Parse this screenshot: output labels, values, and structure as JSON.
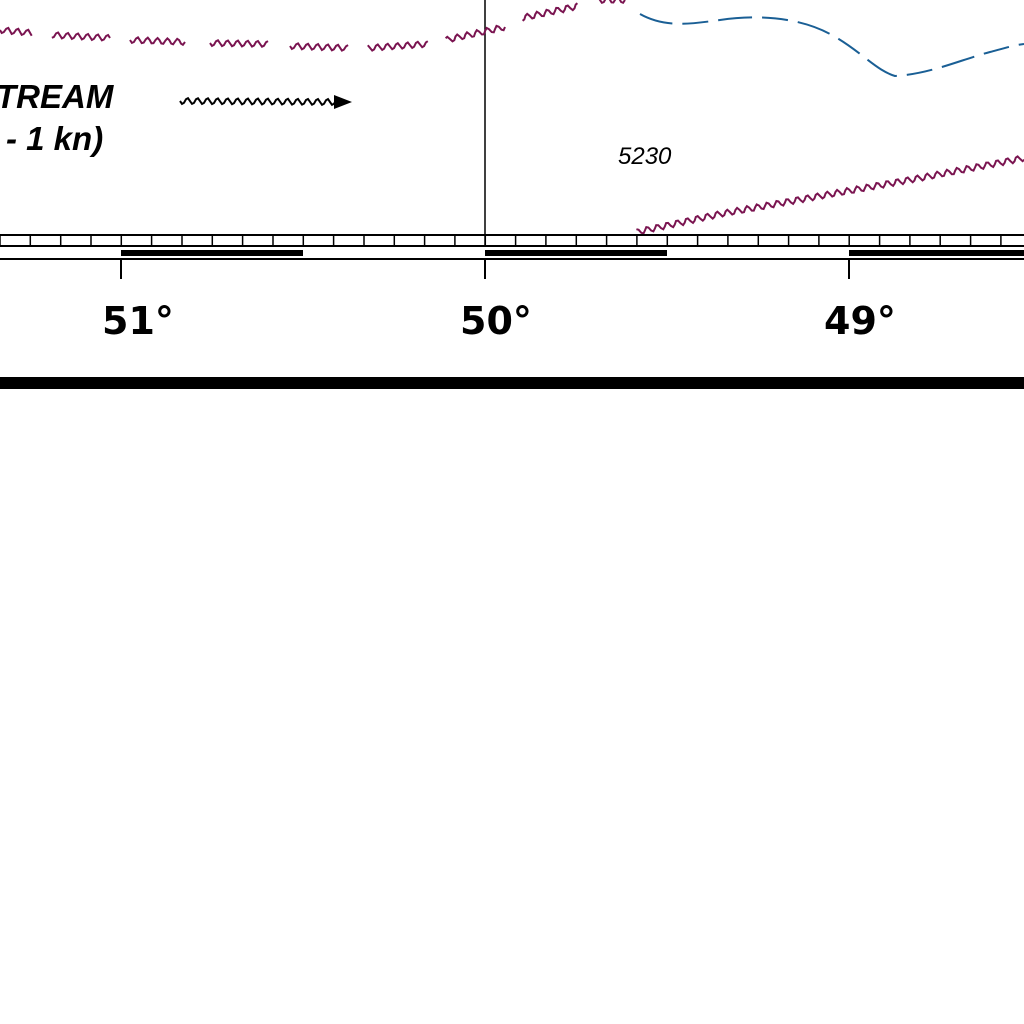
{
  "legend": {
    "current_name": "TREAM",
    "current_speed": "- 1 kn)",
    "current_arrow_icon": "wavy-arrow-icon"
  },
  "soundings": [
    "5230"
  ],
  "longitude_labels": [
    "51°",
    "50°",
    "49°"
  ],
  "colors": {
    "ocean_current_line": "#7a1450",
    "depth_contour": "#1a5f95",
    "ink": "#000000",
    "paper": "#ffffff"
  }
}
